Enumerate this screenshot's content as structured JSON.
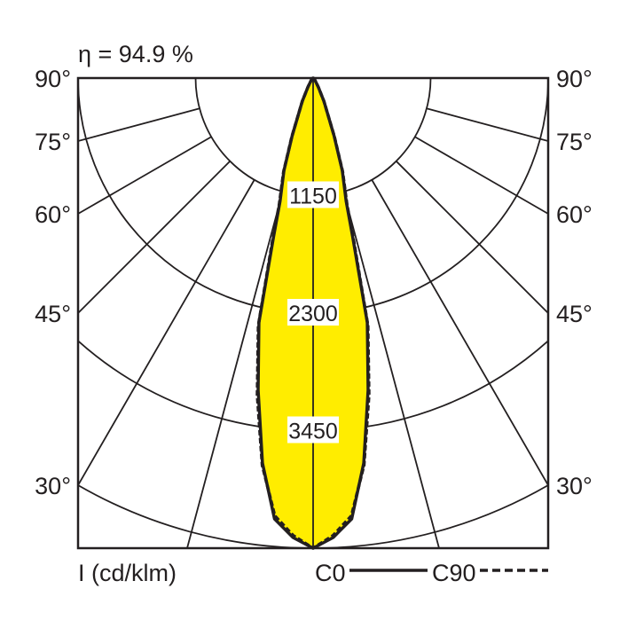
{
  "chart_data": {
    "type": "polar",
    "title": "η = 94.9 %",
    "unit_label": "I (cd/klm)",
    "radial_ticks": [
      1150,
      2300,
      3450
    ],
    "radial_max": 4600,
    "angle_ticks": [
      90,
      75,
      60,
      45,
      30
    ],
    "angle_tick_labels": [
      "90°",
      "75°",
      "60°",
      "45°",
      "30°"
    ],
    "grid_angles": [
      0,
      15,
      30,
      45,
      60,
      75,
      90
    ],
    "grid": true,
    "fill_color": "#ffed00",
    "line_color": "#231f20",
    "legend": [
      {
        "label": "C0",
        "style": "solid"
      },
      {
        "label": "C90",
        "style": "dashed"
      }
    ],
    "series": [
      {
        "name": "C0",
        "angles": [
          0,
          2.5,
          5,
          7.5,
          10,
          12.5,
          14,
          15,
          17.5,
          20,
          25,
          30,
          40,
          60,
          90
        ],
        "values": [
          4600,
          4500,
          4330,
          3800,
          3100,
          2450,
          1600,
          1250,
          950,
          600,
          250,
          100,
          30,
          5,
          0
        ]
      },
      {
        "name": "C90",
        "angles": [
          0,
          2.5,
          5,
          7.5,
          10,
          12.5,
          14,
          15,
          17.5,
          20,
          25,
          30,
          40,
          60,
          90
        ],
        "values": [
          4600,
          4480,
          4300,
          3820,
          3150,
          2480,
          1650,
          1280,
          960,
          610,
          250,
          100,
          30,
          5,
          0
        ]
      }
    ]
  }
}
